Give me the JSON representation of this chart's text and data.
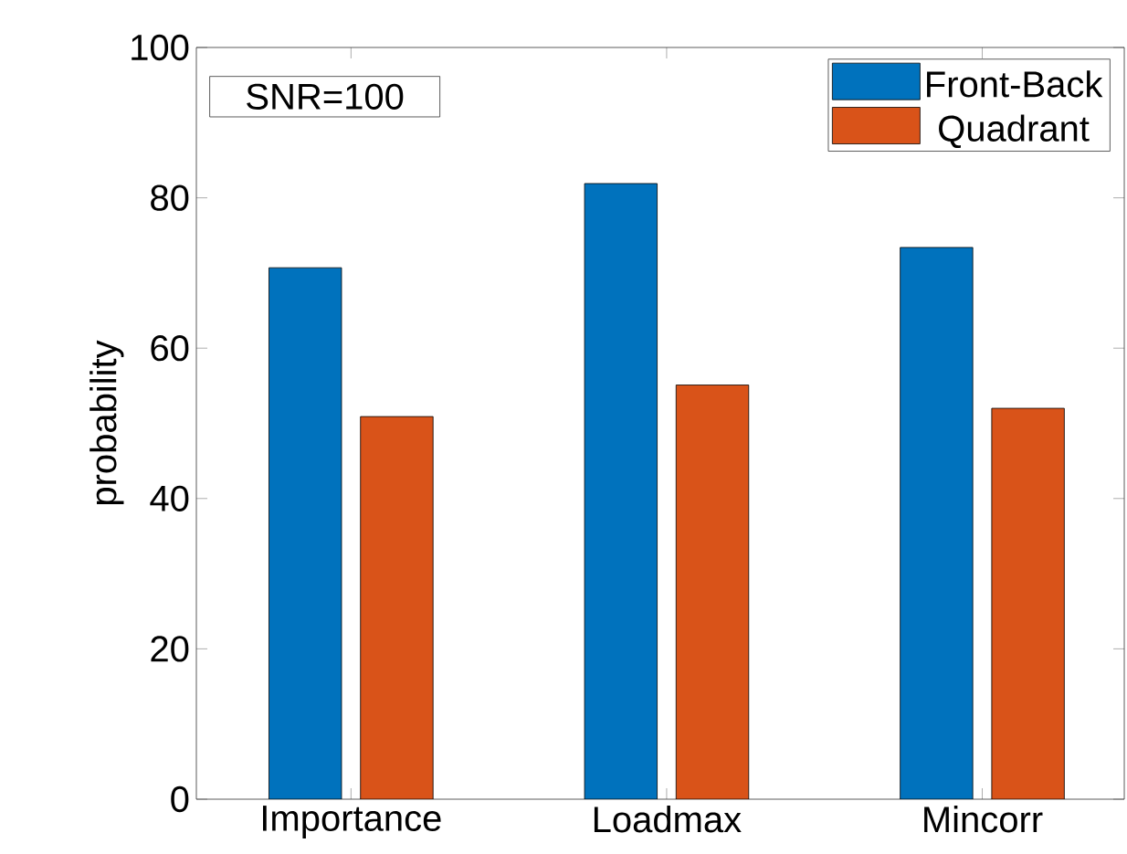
{
  "chart_data": {
    "type": "bar",
    "ylabel": "probability",
    "categories": [
      "Importance",
      "Loadmax",
      "Mincorr"
    ],
    "series": [
      {
        "name": "Front-Back",
        "color": "#0072bd",
        "values": [
          70.7,
          81.9,
          73.4
        ]
      },
      {
        "name": "Quadrant",
        "color": "#d95319",
        "values": [
          50.9,
          55.1,
          52.0
        ]
      }
    ],
    "ylim": [
      0,
      100
    ],
    "yticks": [
      0,
      20,
      40,
      60,
      80,
      100
    ],
    "legend": "top right",
    "annotations": [
      "SNR=100"
    ]
  }
}
